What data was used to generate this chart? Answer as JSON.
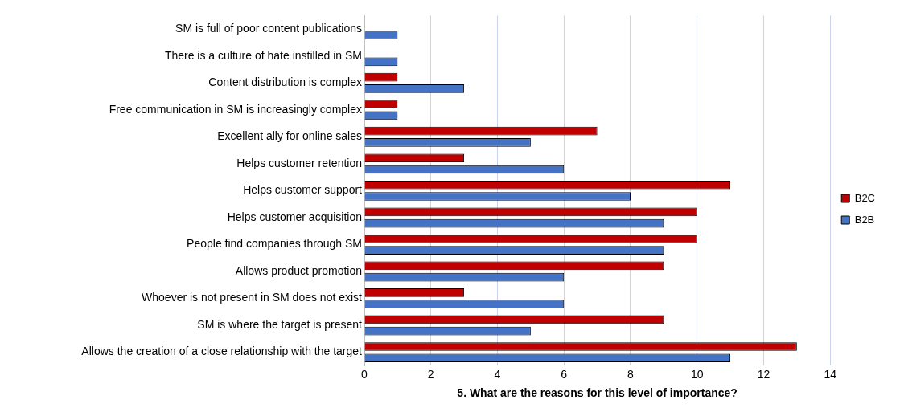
{
  "chart_data": {
    "type": "bar",
    "orientation": "horizontal",
    "xlabel": "5. What are the reasons for this level of importance?",
    "categories": [
      "SM is full of poor content publications",
      "There is a culture of hate instilled in SM",
      "Content distribution is complex",
      "Free communication in SM is increasingly complex",
      "Excellent ally for online sales",
      "Helps customer retention",
      "Helps customer support",
      "Helps customer acquisition",
      "People find companies through SM",
      "Allows product promotion",
      "Whoever is not present in SM does not exist",
      "SM is where the target is present",
      "Allows the creation of a close relationship with the target"
    ],
    "series": [
      {
        "name": "B2C",
        "color": "#c00000",
        "values": [
          null,
          null,
          1,
          1,
          7,
          3,
          11,
          10,
          10,
          9,
          3,
          9,
          13
        ]
      },
      {
        "name": "B2B",
        "color": "#4472c4",
        "values": [
          1,
          1,
          3,
          1,
          5,
          6,
          8,
          9,
          9,
          6,
          6,
          5,
          11
        ]
      }
    ],
    "xlim": [
      0,
      14
    ],
    "xticks": [
      0,
      2,
      4,
      6,
      8,
      10,
      12,
      14
    ],
    "grid": "x",
    "legend": "right"
  }
}
